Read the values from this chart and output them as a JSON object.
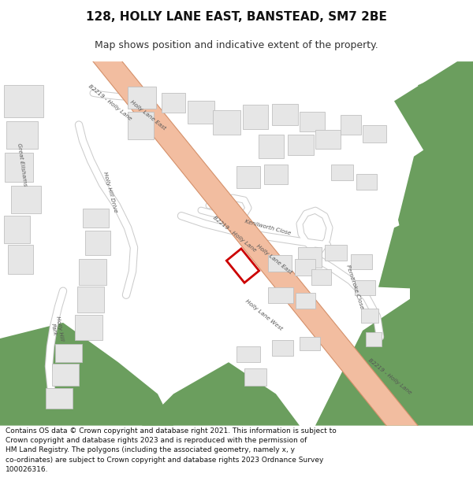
{
  "title": "128, HOLLY LANE EAST, BANSTEAD, SM7 2BE",
  "subtitle": "Map shows position and indicative extent of the property.",
  "copyright_text": "Contains OS data © Crown copyright and database right 2021. This information is subject to Crown copyright and database rights 2023 and is reproduced with the permission of HM Land Registry. The polygons (including the associated geometry, namely x, y co-ordinates) are subject to Crown copyright and database rights 2023 Ordnance Survey 100026316.",
  "bg_color": "#ffffff",
  "road_fill": "#f2bda0",
  "road_edge": "#d4906a",
  "building_fill": "#e6e6e6",
  "building_edge": "#c0c0c0",
  "green_fill": "#6b9e5e",
  "property_edge": "#cc0000",
  "label_color": "#555555",
  "title_fontsize": 11,
  "subtitle_fontsize": 9,
  "label_fontsize": 5.5
}
